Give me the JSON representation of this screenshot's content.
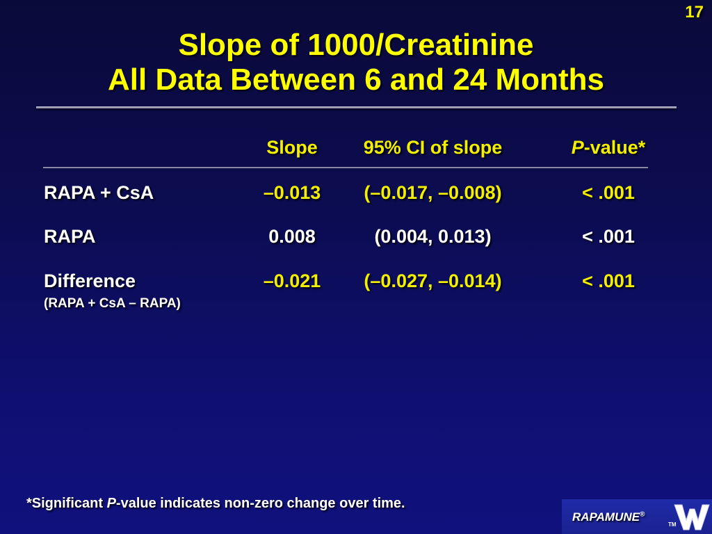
{
  "slide": {
    "number": "17",
    "title_line1": "Slope of 1000/Creatinine",
    "title_line2": "All Data Between 6 and 24 Months"
  },
  "table": {
    "headers": {
      "slope": "Slope",
      "ci": "95% CI of slope",
      "p_italic": "P",
      "p_rest": "-value*"
    },
    "rows": [
      {
        "label": "RAPA + CsA",
        "sublabel": "",
        "slope": "–0.013",
        "ci": "(–0.017, –0.008)",
        "p": "< .001"
      },
      {
        "label": "RAPA",
        "sublabel": "",
        "slope": "0.008",
        "ci": "(0.004, 0.013)",
        "p": "< .001"
      },
      {
        "label": "Difference",
        "sublabel": "(RAPA + CsA – RAPA)",
        "slope": "–0.021",
        "ci": "(–0.027, –0.014)",
        "p": "< .001"
      }
    ]
  },
  "footnote": {
    "prefix": "*Significant ",
    "italic": "P",
    "suffix": "-value indicates non-zero change over time."
  },
  "brand": {
    "name": "RAPAMUNE",
    "reg": "®",
    "tm": "TM",
    "logo": "w-logo-icon"
  },
  "colors": {
    "title": "#ffff00",
    "accent": "#f2f000",
    "text": "#ffffff",
    "background": "#0c0c52"
  }
}
